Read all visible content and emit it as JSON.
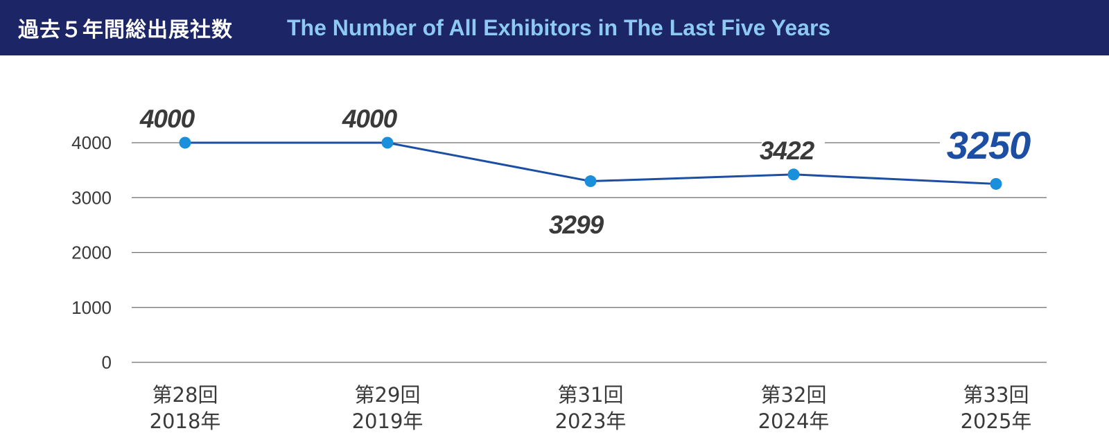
{
  "header": {
    "title_ja": "過去５年間総出展社数",
    "title_en": "The Number of All Exhibitors in The Last Five Years"
  },
  "chart_data": {
    "type": "line",
    "categories": [
      [
        "第28回",
        "2018年"
      ],
      [
        "第29回",
        "2019年"
      ],
      [
        "第31回",
        "2023年"
      ],
      [
        "第32回",
        "2024年"
      ],
      [
        "第33回",
        "2025年"
      ]
    ],
    "values": [
      4000,
      4000,
      3299,
      3422,
      3250
    ],
    "data_labels": [
      "4000",
      "4000",
      "3299",
      "3422",
      "3250"
    ],
    "yticks": [
      0,
      1000,
      2000,
      3000,
      4000
    ],
    "ylim": [
      0,
      4000
    ],
    "grid": true,
    "line_color": "#1c4fa3",
    "marker_color": "#1a8fdb",
    "label_color": "#3a3a3a",
    "highlight_label_color": "#1c4fa3"
  }
}
